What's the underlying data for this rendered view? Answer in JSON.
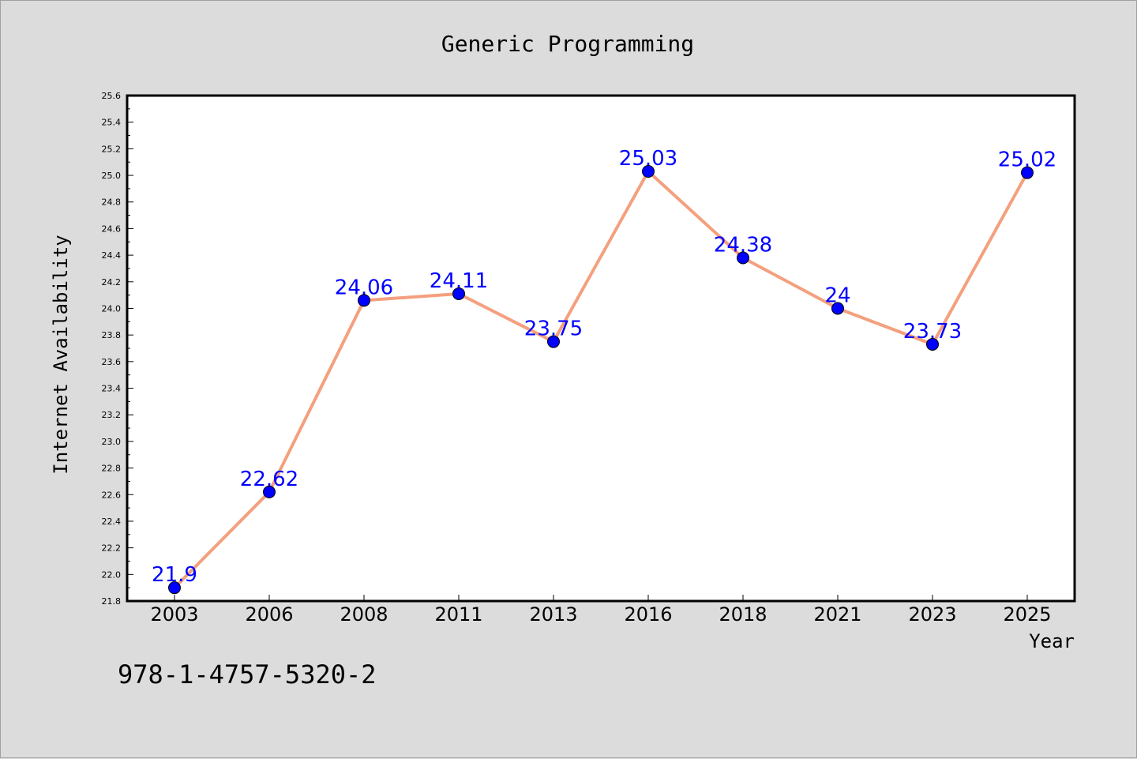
{
  "chart_data": {
    "type": "line",
    "title": "Generic Programming",
    "xlabel": "Year",
    "ylabel": "Internet Availability",
    "categories": [
      "2003",
      "2006",
      "2008",
      "2011",
      "2013",
      "2016",
      "2018",
      "2021",
      "2023",
      "2025"
    ],
    "values": [
      21.9,
      22.62,
      24.06,
      24.11,
      23.75,
      25.03,
      24.38,
      24,
      23.73,
      25.02
    ],
    "data_labels": [
      "21.9",
      "22.62",
      "24.06",
      "24.11",
      "23.75",
      "25.03",
      "24.38",
      "24",
      "23.73",
      "25.02"
    ],
    "ylim": [
      21.8,
      25.6
    ],
    "yticks": [
      "21.8",
      "22.0",
      "22.2",
      "22.4",
      "22.6",
      "22.8",
      "23.0",
      "23.2",
      "23.4",
      "23.6",
      "23.8",
      "24.0",
      "24.2",
      "24.4",
      "24.6",
      "24.8",
      "25.0",
      "25.2",
      "25.4",
      "25.6"
    ],
    "grid": false,
    "line_color": "#f4a07e",
    "marker_color": "#0000ff",
    "label_color": "#0000ff",
    "plot_background": "#ffffff",
    "page_background": "#dcdcdc"
  },
  "footer": {
    "isbn": "978-1-4757-5320-2"
  }
}
